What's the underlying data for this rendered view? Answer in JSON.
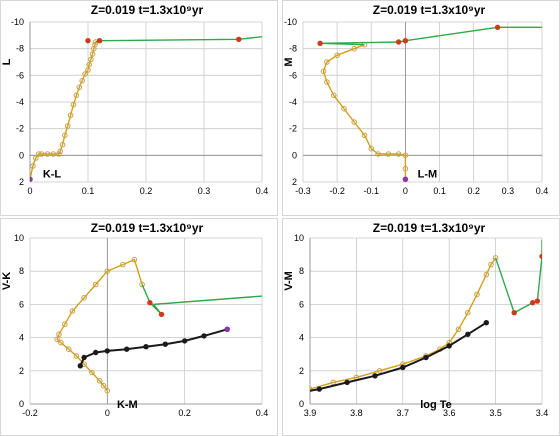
{
  "colors": {
    "isochrone": "#d4a017",
    "isochrone_marker": "#c8a24a",
    "giant_branch": "#2eaa4a",
    "lower_main_sequence": "#1a1a1a",
    "agb_points": "#d03a1a",
    "endpoint": "#8a3aa8",
    "grid": "#c9c9c9"
  },
  "chart_data": [
    {
      "type": "line",
      "title": "Z=0.019   t=1.3x10⁹yr",
      "xlabel": "K-L",
      "ylabel": "L",
      "xlim": [
        0,
        0.4
      ],
      "ylim": [
        2,
        -10
      ],
      "y_inverted": true,
      "xticks": [
        "0",
        "0.1",
        "0.2",
        "0.3",
        "0.4"
      ],
      "yticks": [
        "-10",
        "-8",
        "-6",
        "-4",
        "-2",
        "0",
        "2"
      ],
      "grid": true,
      "series": [
        {
          "color": "isochrone",
          "marker": "o",
          "x": [
            0.0,
            0.005,
            0.01,
            0.015,
            0.02,
            0.03,
            0.04,
            0.05,
            0.052,
            0.056,
            0.06,
            0.065,
            0.07,
            0.075,
            0.08,
            0.085,
            0.09,
            0.095,
            0.1,
            0.102,
            0.105,
            0.108,
            0.11,
            0.112,
            0.113
          ],
          "y": [
            1.8,
            0.8,
            0.2,
            -0.1,
            -0.1,
            -0.1,
            -0.1,
            -0.1,
            -0.3,
            -0.8,
            -1.5,
            -2.2,
            -3.0,
            -3.8,
            -4.5,
            -5.1,
            -5.6,
            -6.1,
            -6.4,
            -6.8,
            -7.2,
            -7.6,
            -8.0,
            -8.3,
            -8.5
          ]
        },
        {
          "color": "giant_branch",
          "marker": "none",
          "x": [
            0.113,
            0.12,
            0.36,
            0.4
          ],
          "y": [
            -8.5,
            -8.6,
            -8.7,
            -8.9
          ]
        },
        {
          "color": "agb_points",
          "marker": "o",
          "line": false,
          "x": [
            0.1,
            0.12,
            0.36
          ],
          "y": [
            -8.6,
            -8.6,
            -8.7
          ]
        },
        {
          "color": "endpoint",
          "marker": "o",
          "line": false,
          "x": [
            0.0
          ],
          "y": [
            1.8
          ]
        }
      ]
    },
    {
      "type": "line",
      "title": "Z=0.019   t=1.3x10⁹yr",
      "xlabel": "L-M",
      "ylabel": "M",
      "xlim": [
        -0.3,
        0.4
      ],
      "ylim": [
        2,
        -10
      ],
      "y_inverted": true,
      "xticks": [
        "-0.3",
        "-0.2",
        "-0.1",
        "0",
        "0.1",
        "0.2",
        "0.3",
        "0.4"
      ],
      "yticks": [
        "-10",
        "-8",
        "-6",
        "-4",
        "-2",
        "0",
        "2"
      ],
      "grid": true,
      "series": [
        {
          "color": "isochrone",
          "marker": "o",
          "x": [
            0.0,
            0.0,
            0.0,
            -0.02,
            -0.05,
            -0.08,
            -0.1,
            -0.12,
            -0.15,
            -0.18,
            -0.21,
            -0.23,
            -0.24,
            -0.23,
            -0.2,
            -0.15,
            -0.12
          ],
          "y": [
            1.8,
            1.0,
            0.0,
            -0.1,
            -0.1,
            -0.1,
            -0.5,
            -1.5,
            -2.5,
            -3.5,
            -4.5,
            -5.5,
            -6.3,
            -7.0,
            -7.5,
            -8.0,
            -8.3
          ]
        },
        {
          "color": "giant_branch",
          "marker": "none",
          "x": [
            -0.12,
            -0.25,
            -0.02,
            0.0,
            0.27,
            0.32,
            0.4
          ],
          "y": [
            -8.3,
            -8.4,
            -8.5,
            -8.6,
            -9.6,
            -9.6,
            -9.6
          ]
        },
        {
          "color": "agb_points",
          "marker": "o",
          "line": false,
          "x": [
            -0.25,
            -0.02,
            0.0,
            0.27
          ],
          "y": [
            -8.4,
            -8.5,
            -8.6,
            -9.6
          ]
        },
        {
          "color": "endpoint",
          "marker": "o",
          "line": false,
          "x": [
            0.0
          ],
          "y": [
            1.8
          ]
        }
      ]
    },
    {
      "type": "line",
      "title": "Z=0.019   t=1.3x10⁹yr",
      "xlabel": "K-M",
      "ylabel": "V-K",
      "xlim": [
        -0.2,
        0.4
      ],
      "ylim": [
        0,
        10
      ],
      "y_inverted": false,
      "xticks": [
        "-0.2",
        "0",
        "0.2",
        "0.4"
      ],
      "yticks": [
        "0",
        "2",
        "4",
        "6",
        "8",
        "10"
      ],
      "grid": true,
      "series": [
        {
          "color": "isochrone",
          "marker": "o",
          "x": [
            0.0,
            -0.01,
            -0.02,
            -0.04,
            -0.06,
            -0.08,
            -0.1,
            -0.12,
            -0.13,
            -0.125,
            -0.11,
            -0.09,
            -0.06,
            -0.03,
            0.0,
            0.04,
            0.07,
            0.09
          ],
          "y": [
            0.8,
            1.1,
            1.4,
            1.9,
            2.4,
            2.9,
            3.3,
            3.7,
            3.9,
            4.2,
            4.8,
            5.6,
            6.4,
            7.2,
            8.0,
            8.4,
            8.7,
            7.2
          ]
        },
        {
          "color": "giant_branch",
          "marker": "none",
          "x": [
            0.09,
            0.11,
            0.14,
            0.12,
            0.4
          ],
          "y": [
            7.2,
            6.1,
            5.4,
            6.0,
            6.5
          ]
        },
        {
          "color": "lower_main_sequence",
          "marker": "o",
          "x": [
            -0.07,
            -0.06,
            -0.03,
            0.0,
            0.05,
            0.1,
            0.15,
            0.2,
            0.25,
            0.31
          ],
          "y": [
            2.3,
            2.8,
            3.1,
            3.2,
            3.3,
            3.45,
            3.6,
            3.8,
            4.1,
            4.5
          ]
        },
        {
          "color": "agb_points",
          "marker": "o",
          "line": false,
          "x": [
            0.11,
            0.14
          ],
          "y": [
            6.1,
            5.4
          ]
        },
        {
          "color": "endpoint",
          "marker": "o",
          "line": false,
          "x": [
            0.31
          ],
          "y": [
            4.5
          ]
        }
      ]
    },
    {
      "type": "line",
      "title": "Z=0.019   t=1.3x10⁹yr",
      "xlabel": "log Te",
      "ylabel": "V-M",
      "xlim": [
        3.9,
        3.4
      ],
      "ylim": [
        0,
        10
      ],
      "x_inverted": true,
      "y_inverted": false,
      "xticks": [
        "3.9",
        "3.8",
        "3.7",
        "3.6",
        "3.5",
        "3.4"
      ],
      "yticks": [
        "0",
        "2",
        "4",
        "6",
        "8",
        "10"
      ],
      "grid": true,
      "series": [
        {
          "color": "isochrone",
          "marker": "o",
          "x": [
            3.94,
            3.9,
            3.85,
            3.8,
            3.75,
            3.7,
            3.65,
            3.62,
            3.6,
            3.58,
            3.56,
            3.54,
            3.52,
            3.51,
            3.5
          ],
          "y": [
            0.6,
            0.9,
            1.3,
            1.6,
            2.0,
            2.4,
            2.9,
            3.3,
            3.7,
            4.5,
            5.5,
            6.6,
            7.8,
            8.4,
            8.8
          ]
        },
        {
          "color": "giant_branch",
          "marker": "none",
          "x": [
            3.5,
            3.46,
            3.42,
            3.41,
            3.4,
            3.4
          ],
          "y": [
            8.8,
            5.5,
            6.1,
            6.2,
            8.9,
            9.9
          ]
        },
        {
          "color": "lower_main_sequence",
          "marker": "o",
          "x": [
            3.94,
            3.88,
            3.82,
            3.76,
            3.7,
            3.65,
            3.6,
            3.56,
            3.52
          ],
          "y": [
            0.6,
            0.9,
            1.3,
            1.7,
            2.2,
            2.8,
            3.5,
            4.2,
            4.9
          ]
        },
        {
          "color": "agb_points",
          "marker": "o",
          "line": false,
          "x": [
            3.46,
            3.42,
            3.41,
            3.4
          ],
          "y": [
            5.5,
            6.1,
            6.2,
            8.9
          ]
        }
      ]
    }
  ]
}
